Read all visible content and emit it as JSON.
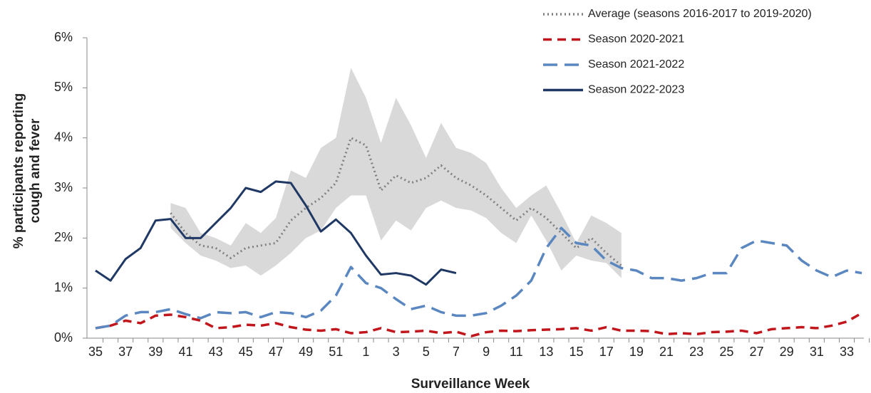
{
  "chart_data": {
    "type": "line",
    "ylabel": [
      "% participants reporting",
      "cough and fever"
    ],
    "xlabel": "Surveillance Week",
    "categories": [
      "35",
      null,
      "37",
      null,
      "39",
      null,
      "41",
      null,
      "43",
      null,
      "45",
      null,
      "47",
      null,
      "49",
      null,
      "51",
      null,
      "1",
      null,
      "3",
      null,
      "5",
      null,
      "7",
      null,
      "9",
      null,
      "11",
      null,
      "13",
      null,
      "15",
      null,
      "17",
      null,
      "19",
      null,
      "21",
      null,
      "23",
      null,
      "25",
      null,
      "27",
      null,
      "29",
      null,
      "31",
      null,
      "33",
      null
    ],
    "ylim": [
      0,
      6
    ],
    "yticks": [
      {
        "value": 0,
        "label": "0%"
      },
      {
        "value": 1,
        "label": "1%"
      },
      {
        "value": 2,
        "label": "2%"
      },
      {
        "value": 3,
        "label": "3%"
      },
      {
        "value": 4,
        "label": "4%"
      },
      {
        "value": 5,
        "label": "5%"
      },
      {
        "value": 6,
        "label": "6%"
      }
    ],
    "band": {
      "color": "#d9d9d9",
      "upper": [
        null,
        null,
        null,
        null,
        null,
        2.7,
        2.6,
        2.1,
        2.0,
        1.85,
        2.3,
        2.1,
        2.4,
        3.35,
        3.2,
        3.8,
        4.0,
        5.4,
        4.8,
        3.9,
        4.8,
        4.25,
        3.6,
        4.3,
        3.8,
        3.7,
        3.5,
        3.0,
        2.6,
        2.85,
        3.05,
        2.5,
        1.9,
        2.45,
        2.3,
        2.1,
        null,
        null,
        null,
        null,
        null,
        null,
        null,
        null,
        null,
        null,
        null,
        null,
        null,
        null,
        null,
        null
      ],
      "lower": [
        null,
        null,
        null,
        null,
        null,
        2.2,
        1.9,
        1.65,
        1.55,
        1.4,
        1.45,
        1.25,
        1.45,
        1.7,
        2.0,
        2.15,
        2.6,
        2.85,
        2.85,
        1.95,
        2.35,
        2.15,
        2.6,
        2.75,
        2.6,
        2.55,
        2.4,
        2.1,
        1.9,
        2.45,
        1.95,
        1.35,
        1.65,
        1.55,
        1.5,
        1.2,
        null,
        null,
        null,
        null,
        null,
        null,
        null,
        null,
        null,
        null,
        null,
        null,
        null,
        null,
        null,
        null
      ]
    },
    "series": [
      {
        "name": "Average (seasons 2016-2017 to 2019-2020)",
        "color": "#808080",
        "style": "dotted",
        "values": [
          null,
          null,
          null,
          null,
          null,
          2.5,
          2.1,
          1.85,
          1.8,
          1.6,
          1.8,
          1.85,
          1.9,
          2.35,
          2.6,
          2.8,
          3.1,
          4.0,
          3.85,
          2.95,
          3.25,
          3.1,
          3.2,
          3.45,
          3.2,
          3.05,
          2.85,
          2.6,
          2.35,
          2.6,
          2.4,
          2.1,
          1.8,
          2.0,
          1.7,
          1.45,
          null,
          null,
          null,
          null,
          null,
          null,
          null,
          null,
          null,
          null,
          null,
          null,
          null,
          null,
          null,
          null
        ]
      },
      {
        "name": "Season 2020-2021",
        "color": "#c0161c",
        "style": "dashed",
        "values": [
          0.2,
          0.25,
          0.35,
          0.3,
          0.45,
          0.47,
          0.42,
          0.35,
          0.2,
          0.22,
          0.27,
          0.25,
          0.3,
          0.22,
          0.17,
          0.15,
          0.18,
          0.1,
          0.12,
          0.2,
          0.12,
          0.13,
          0.15,
          0.1,
          0.13,
          0.04,
          0.12,
          0.15,
          0.14,
          0.16,
          0.17,
          0.18,
          0.2,
          0.15,
          0.22,
          0.15,
          0.15,
          0.14,
          0.08,
          0.1,
          0.08,
          0.12,
          0.13,
          0.15,
          0.1,
          0.18,
          0.2,
          0.22,
          0.2,
          0.25,
          0.33,
          0.5
        ]
      },
      {
        "name": "Season 2021-2022",
        "color": "#5b87c0",
        "style": "longdash",
        "values": [
          0.2,
          0.25,
          0.45,
          0.52,
          0.52,
          0.58,
          0.48,
          0.4,
          0.52,
          0.5,
          0.52,
          0.42,
          0.52,
          0.5,
          0.42,
          0.55,
          0.85,
          1.42,
          1.1,
          1.0,
          0.78,
          0.58,
          0.65,
          0.52,
          0.45,
          0.45,
          0.5,
          0.65,
          0.85,
          1.15,
          1.8,
          2.2,
          1.9,
          1.85,
          1.55,
          1.4,
          1.35,
          1.2,
          1.2,
          1.15,
          1.2,
          1.3,
          1.3,
          1.8,
          1.95,
          1.9,
          1.85,
          1.55,
          1.35,
          1.22,
          1.35,
          1.3
        ]
      },
      {
        "name": "Season 2022-2023",
        "color": "#1f3864",
        "style": "solid",
        "values": [
          1.35,
          1.15,
          1.58,
          1.8,
          2.35,
          2.38,
          2.0,
          2.0,
          2.3,
          2.6,
          3.0,
          2.92,
          3.13,
          3.1,
          2.65,
          2.13,
          2.37,
          2.1,
          1.65,
          1.27,
          1.3,
          1.25,
          1.07,
          1.37,
          1.3,
          null,
          null,
          null,
          null,
          null,
          null,
          null,
          null,
          null,
          null,
          null,
          null,
          null,
          null,
          null,
          null,
          null,
          null,
          null,
          null,
          null,
          null,
          null,
          null,
          null,
          null,
          null
        ]
      }
    ]
  }
}
